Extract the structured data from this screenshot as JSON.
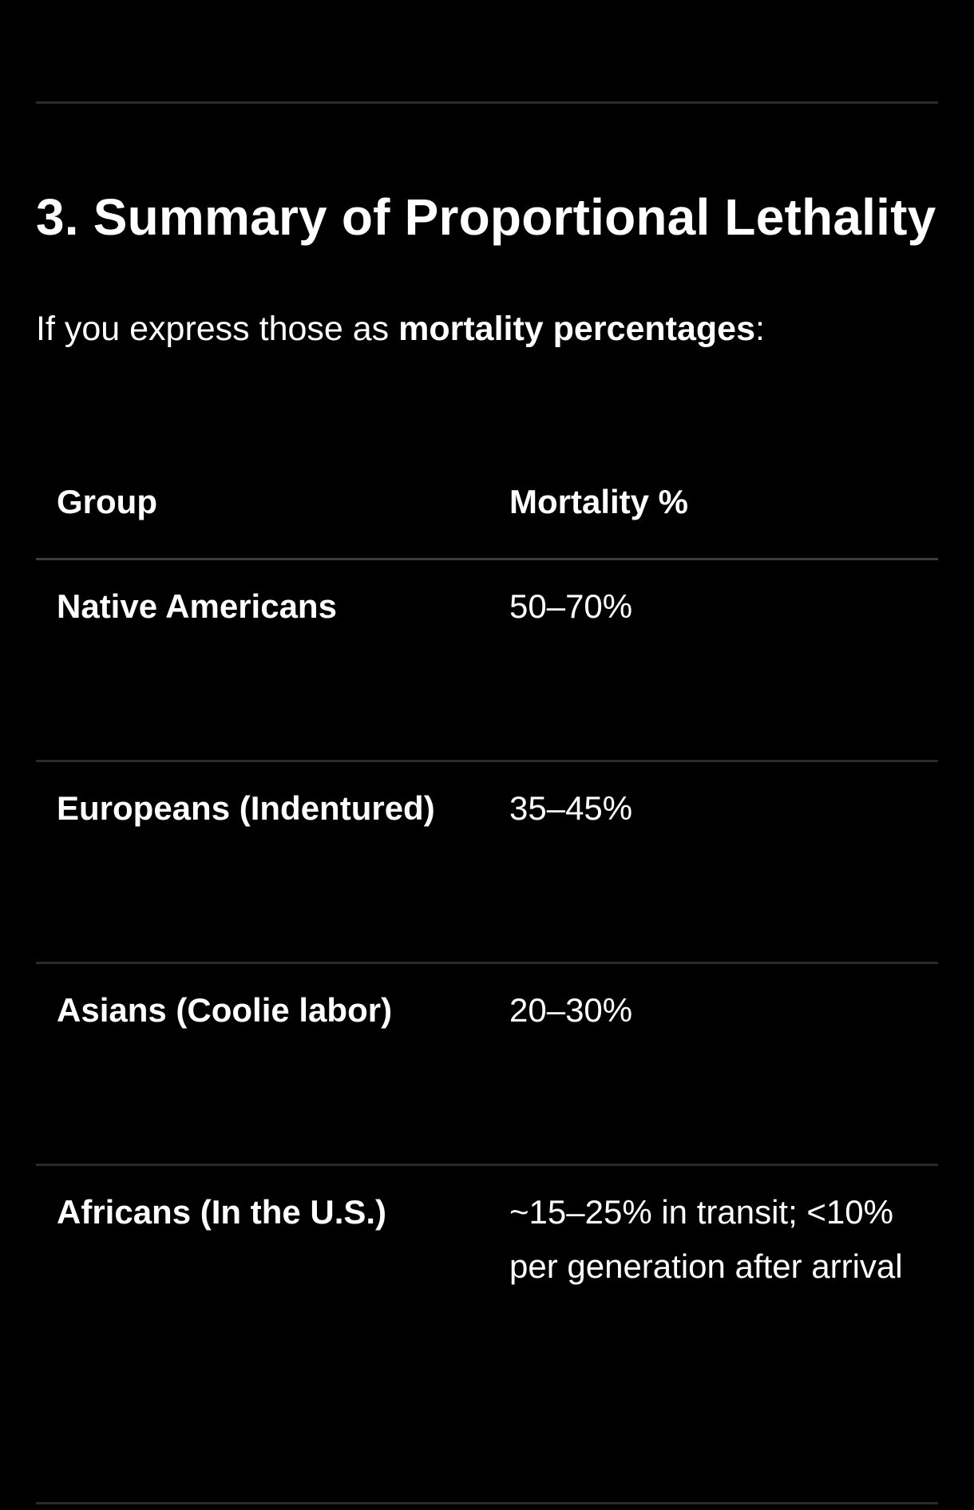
{
  "section": {
    "heading": "3. Summary of Proportional Lethality",
    "intro_prefix": "If you express those as ",
    "intro_emphasis": "mortality percentages",
    "intro_suffix": ":"
  },
  "table": {
    "columns": [
      "Group",
      "Mortality %"
    ],
    "rows": [
      {
        "group": "Native Americans",
        "mortality": "50–70%"
      },
      {
        "group": "Europeans (Indentured)",
        "mortality": "35–45%"
      },
      {
        "group": "Asians (Coolie labor)",
        "mortality": "20–30%"
      },
      {
        "group": "Africans (In the U.S.)",
        "mortality": "~15–25% in transit; <10% per generation after arrival"
      }
    ]
  }
}
